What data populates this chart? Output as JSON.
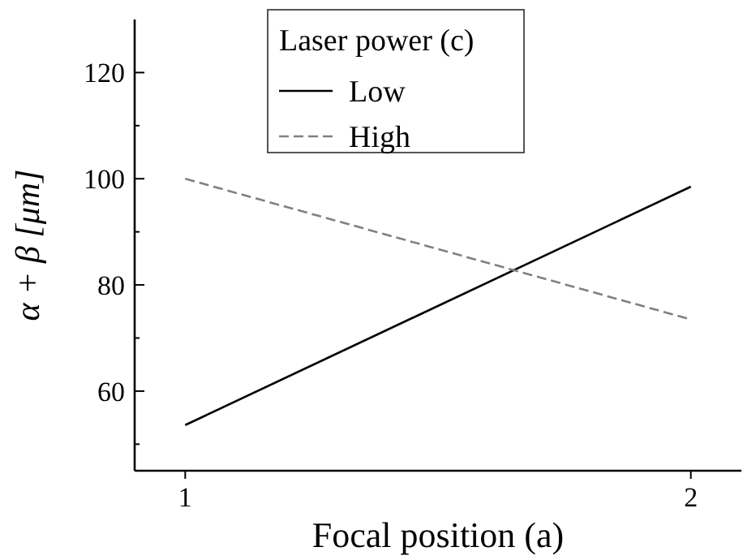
{
  "chart_data": {
    "type": "line",
    "xlabel": "Focal position (a)",
    "ylabel": "α + β [μm]",
    "legend_title": "Laser power (c)",
    "legend": "top",
    "grid": false,
    "marker": "none",
    "x": [
      1,
      2
    ],
    "xlim": [
      0.9,
      2.1
    ],
    "xticks": [
      1,
      2
    ],
    "ylim": [
      45,
      130
    ],
    "yticks": [
      {
        "value": 50,
        "label": null
      },
      60,
      {
        "value": 70,
        "label": null
      },
      80,
      {
        "value": 90,
        "label": null
      },
      100,
      {
        "value": 110,
        "label": null
      },
      120
    ],
    "series": [
      {
        "name": "Low",
        "color": "#000000",
        "line_style": "solid",
        "values": [
          53.6,
          98.5
        ]
      },
      {
        "name": "High",
        "color": "#808080",
        "line_style": "dashed",
        "values": [
          100,
          73.5
        ]
      }
    ]
  }
}
